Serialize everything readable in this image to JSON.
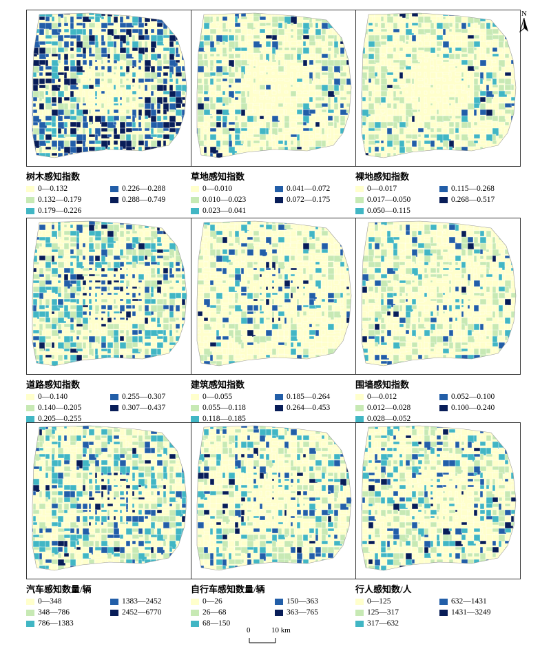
{
  "colors": {
    "c1": "#ffffcc",
    "c2": "#c7e9b4",
    "c3": "#41b6c4",
    "c4": "#225ea8",
    "c5": "#081d58"
  },
  "north_arrow": {
    "label": "N",
    "icon": "north-arrow-icon"
  },
  "scale_bar": {
    "start_label": "0",
    "end_label": "10 km"
  },
  "panels": [
    {
      "id": "tree",
      "title": "树木感知指数",
      "legend": [
        "0—0.132",
        "0.132—0.179",
        "0.179—0.226",
        "0.226—0.288",
        "0.288—0.749"
      ],
      "weights": [
        10,
        22,
        20,
        28,
        20
      ]
    },
    {
      "id": "grass",
      "title": "草地感知指数",
      "legend": [
        "0—0.010",
        "0.010—0.023",
        "0.023—0.041",
        "0.041—0.072",
        "0.072—0.175"
      ],
      "weights": [
        55,
        30,
        8,
        5,
        2
      ]
    },
    {
      "id": "bare",
      "title": "裸地感知指数",
      "legend": [
        "0—0.017",
        "0.017—0.050",
        "0.050—0.115",
        "0.115—0.268",
        "0.268—0.517"
      ],
      "weights": [
        55,
        33,
        8,
        3,
        1
      ]
    },
    {
      "id": "road",
      "title": "道路感知指数",
      "legend": [
        "0—0.140",
        "0.140—0.205",
        "0.205—0.255",
        "0.255—0.307",
        "0.307—0.437"
      ],
      "weights": [
        12,
        25,
        30,
        25,
        8
      ]
    },
    {
      "id": "building",
      "title": "建筑感知指数",
      "legend": [
        "0—0.055",
        "0.055—0.118",
        "0.118—0.185",
        "0.185—0.264",
        "0.264—0.453"
      ],
      "weights": [
        45,
        30,
        12,
        9,
        4
      ]
    },
    {
      "id": "wall",
      "title": "围墙感知指数",
      "legend": [
        "0—0.012",
        "0.012—0.028",
        "0.028—0.052",
        "0.052—0.100",
        "0.100—0.240"
      ],
      "weights": [
        45,
        33,
        12,
        7,
        3
      ]
    },
    {
      "id": "car",
      "title": "汽车感知数量/辆",
      "legend": [
        "0—348",
        "348—786",
        "786—1383",
        "1383—2452",
        "2452—6770"
      ],
      "weights": [
        18,
        25,
        30,
        17,
        10
      ]
    },
    {
      "id": "bike",
      "title": "自行车感知数量/辆",
      "legend": [
        "0—26",
        "26—68",
        "68—150",
        "150—363",
        "363—765"
      ],
      "weights": [
        35,
        28,
        20,
        12,
        5
      ]
    },
    {
      "id": "pedestrian",
      "title": "行人感知数/人",
      "legend": [
        "0—125",
        "125—317",
        "317—632",
        "632—1431",
        "1431—3249"
      ],
      "weights": [
        35,
        28,
        20,
        12,
        5
      ]
    }
  ]
}
